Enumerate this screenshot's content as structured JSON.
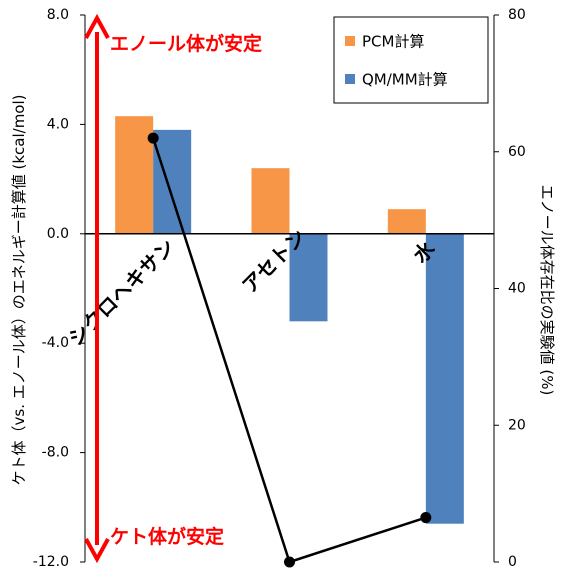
{
  "chart_data": {
    "type": "bar",
    "categories": [
      "シクロヘキサン",
      "アセトン",
      "水"
    ],
    "series": [
      {
        "name": "PCM計算",
        "values": [
          4.3,
          2.4,
          0.9
        ],
        "color": "#f79646",
        "axis": "left"
      },
      {
        "name": "QM/MM計算",
        "values": [
          3.8,
          -3.2,
          -10.6
        ],
        "color": "#4f81bd",
        "axis": "left"
      }
    ],
    "line_series": {
      "values": [
        62,
        0,
        6.5
      ],
      "color": "#000000",
      "axis": "right"
    },
    "ylabel": "ケト体（vs. エノール体）のエネルギー計算値 (kcal/mol)",
    "ylabel_right": "エノール体存在比の実験値 (%)",
    "ylim": [
      -12,
      8
    ],
    "ylim_right": [
      0,
      80
    ],
    "yticks_left": [
      "8.0",
      "4.0",
      "0.0",
      "-4.0",
      "-8.0",
      "-12.0"
    ],
    "yticks_right": [
      "80",
      "60",
      "40",
      "20",
      "0"
    ],
    "legend_position": "top-right",
    "grid": false
  },
  "annotations": {
    "top": "エノール体が安定",
    "bottom": "ケト体が安定",
    "color": "#ff0000"
  }
}
